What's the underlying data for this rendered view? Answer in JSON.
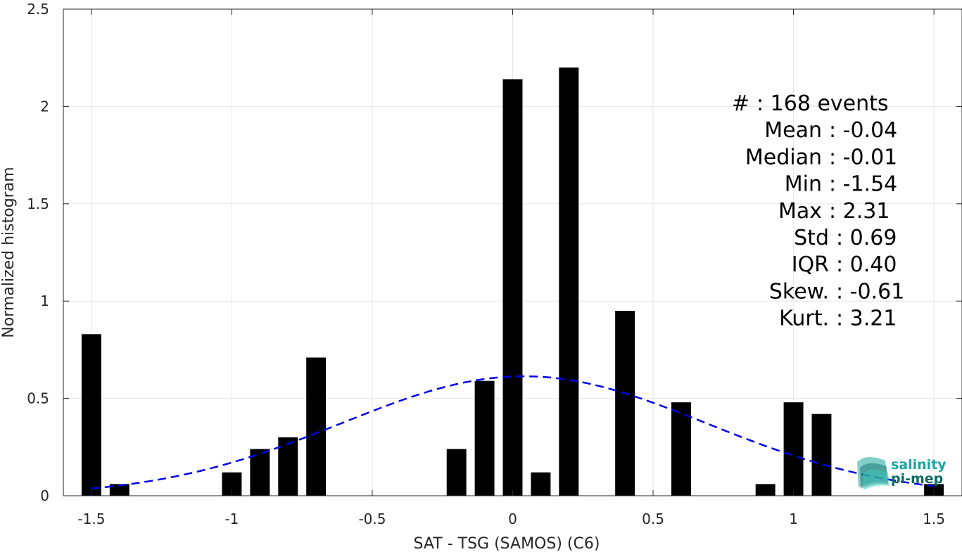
{
  "chart_data": {
    "type": "bar",
    "xlabel": "SAT - TSG (SAMOS) (C6)",
    "ylabel": "Normalized histogram",
    "xlim": [
      -1.6,
      1.6
    ],
    "ylim": [
      0,
      2.5
    ],
    "grid": true,
    "x_ticks": [
      -1.5,
      -1,
      -0.5,
      0,
      0.5,
      1,
      1.5
    ],
    "x_tick_labels": [
      "-1.5",
      "-1",
      "-0.5",
      "0",
      "0.5",
      "1",
      "1.5"
    ],
    "y_ticks": [
      0,
      0.5,
      1,
      1.5,
      2,
      2.5
    ],
    "y_tick_labels": [
      "0",
      "0.5",
      "1",
      "1.5",
      "2",
      "2.5"
    ],
    "bar_width": 0.07,
    "bar_color": "#000000",
    "bars": [
      {
        "x": -1.5,
        "y": 0.83
      },
      {
        "x": -1.4,
        "y": 0.06
      },
      {
        "x": -1.0,
        "y": 0.12
      },
      {
        "x": -0.9,
        "y": 0.24
      },
      {
        "x": -0.8,
        "y": 0.3
      },
      {
        "x": -0.7,
        "y": 0.71
      },
      {
        "x": -0.2,
        "y": 0.24
      },
      {
        "x": -0.1,
        "y": 0.59
      },
      {
        "x": 0.0,
        "y": 2.14
      },
      {
        "x": 0.1,
        "y": 0.12
      },
      {
        "x": 0.2,
        "y": 2.2
      },
      {
        "x": 0.4,
        "y": 0.95
      },
      {
        "x": 0.6,
        "y": 0.48
      },
      {
        "x": 0.9,
        "y": 0.06
      },
      {
        "x": 1.0,
        "y": 0.48
      },
      {
        "x": 1.1,
        "y": 0.42
      },
      {
        "x": 1.5,
        "y": 0.06
      }
    ],
    "fit_curve": {
      "style": "dashed",
      "color": "#0000e6",
      "mean": 0.04,
      "std": 0.65,
      "x_range": [
        -1.5,
        1.5
      ]
    },
    "stats": [
      {
        "label": "#",
        "value": ": 168 events"
      },
      {
        "label": "Mean",
        "value": ": -0.04"
      },
      {
        "label": "Median",
        "value": ": -0.01"
      },
      {
        "label": "Min",
        "value": ": -1.54"
      },
      {
        "label": "Max",
        "value": ": 2.31"
      },
      {
        "label": "Std",
        "value": ": 0.69"
      },
      {
        "label": "IQR",
        "value": ": 0.40"
      },
      {
        "label": "Skew.",
        "value": ": -0.61"
      },
      {
        "label": "Kurt.",
        "value": ": 3.21"
      }
    ]
  },
  "logo": {
    "line1": "salinity",
    "line2": "pi-mep",
    "color1": "#1aa6a0",
    "color2": "#0d6b66"
  }
}
